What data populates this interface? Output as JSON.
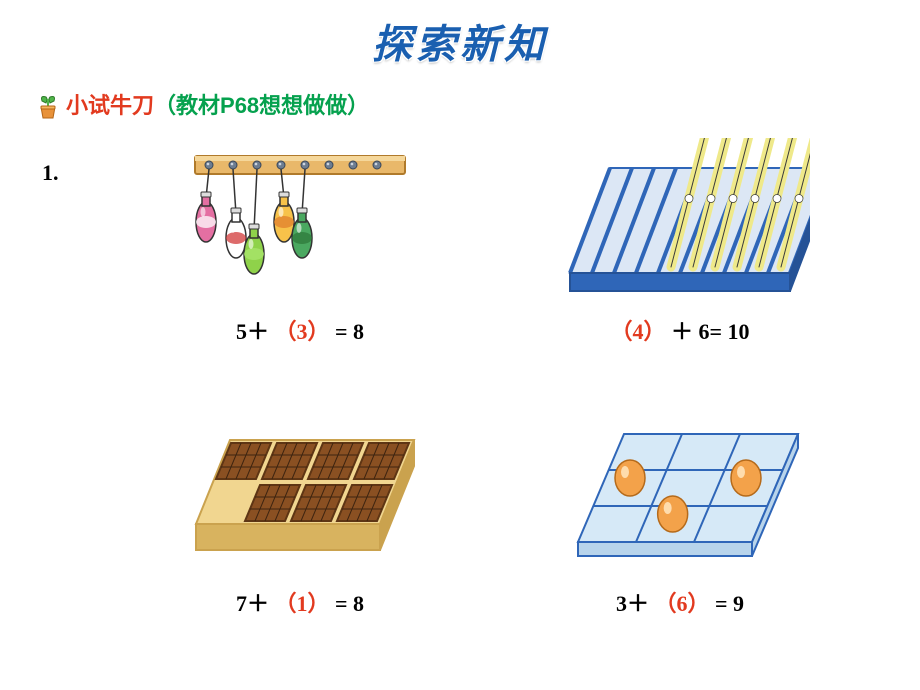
{
  "title": "探索新知",
  "subtitle": {
    "prefix": "小试牛刀",
    "suffix": "（教材P68想想做做）"
  },
  "question_number": "1.",
  "problems": {
    "top_left": {
      "eq": {
        "a": "5",
        "op": "＋",
        "lp": "（",
        "ans": "3",
        "rp": "）",
        "eqs": "=",
        "total": "8"
      },
      "bottles": {
        "hung_count": 5,
        "empty_hooks": 3,
        "rack_color": "#e9b86a",
        "rack_edge": "#b07a2b",
        "hook_color": "#6d7d91",
        "bottle_colors": [
          "#e46fa2",
          "#ffffff",
          "#8fd24a",
          "#f7c24a",
          "#4aa860"
        ],
        "bottle_stripes": [
          "#ffffff",
          "#d23a3a",
          "#a9e66d",
          "#e07f2e",
          "#2f7a3b"
        ]
      }
    },
    "top_right": {
      "eq": {
        "lp": "（",
        "ans": "4",
        "rp": "）",
        "op": "＋",
        "b": "6",
        "eqs": "=",
        "total": "10"
      },
      "pens": {
        "slots": 10,
        "pen_count": 6,
        "empty_slots": 4,
        "box_fill": "#2f66b8",
        "box_side": "#255296",
        "box_top": "#dce7f5",
        "slot_line": "#2f66b8",
        "pen_body": "#efe98a",
        "pen_cap": "#cfd2d8",
        "pen_outline": "#3a3a3a"
      }
    },
    "bottom_left": {
      "eq": {
        "a": "7",
        "op": "＋",
        "lp": "（",
        "ans": "1",
        "rp": "）",
        "eqs": "=",
        "total": "8"
      },
      "choc": {
        "cols": 4,
        "rows": 2,
        "filled": 7,
        "empty_cell": [
          1,
          0
        ],
        "box_top": "#f1d690",
        "box_side": "#caa24e",
        "box_front": "#d8b35f",
        "bar_fill": "#8a5022",
        "bar_dark": "#5e3514",
        "grid_line": "#3e2410"
      }
    },
    "bottom_right": {
      "eq": {
        "a": "3",
        "op": "＋",
        "lp": "（",
        "ans": "6",
        "rp": "）",
        "eqs": "=",
        "total": "9"
      },
      "eggs": {
        "cols": 3,
        "rows": 3,
        "egg_cells": [
          [
            1,
            0
          ],
          [
            2,
            1
          ],
          [
            1,
            2
          ]
        ],
        "tray_fill": "#d6e9f7",
        "tray_line": "#2f66b8",
        "tray_side": "#b8d4eb",
        "egg_fill": "#f3a24a",
        "egg_hi": "#ffe2b8",
        "egg_line": "#b56a1a"
      }
    }
  }
}
